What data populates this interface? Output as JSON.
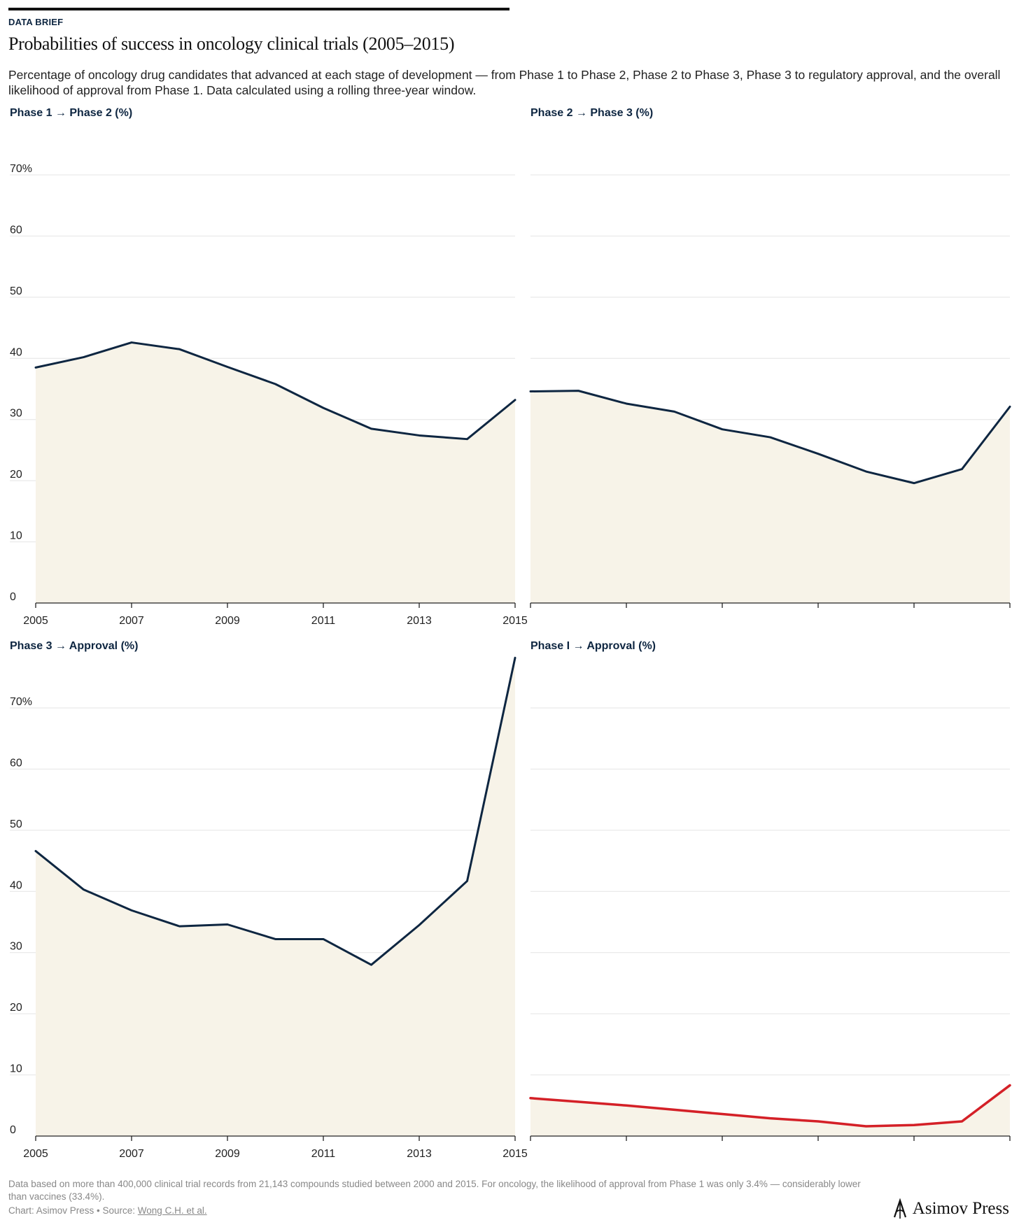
{
  "header": {
    "kicker": "DATA BRIEF",
    "title": "Probabilities of success in oncology clinical trials (2005–2015)",
    "subtitle": "Percentage of oncology drug candidates that advanced at each stage of development — from Phase 1 to Phase 2, Phase 2 to Phase 3, Phase 3 to regulatory approval, and the overall likelihood of approval from Phase 1. Data calculated using a rolling three-year window."
  },
  "colors": {
    "line": "#0e2641",
    "highlight": "#d42027",
    "fill": "#f7f3e8",
    "grid": "#e4e4e4"
  },
  "chart_data": [
    {
      "type": "area",
      "title": "Phase 1 → Phase 2 (%)",
      "x": [
        2005,
        2006,
        2007,
        2008,
        2009,
        2010,
        2011,
        2012,
        2013,
        2014,
        2015
      ],
      "values": [
        38.5,
        40.2,
        42.6,
        41.5,
        38.6,
        35.8,
        31.9,
        28.5,
        27.4,
        26.8,
        33.2
      ],
      "yticks": [
        "0",
        "10",
        "20",
        "30",
        "40",
        "50",
        "60",
        "70%"
      ],
      "xticks": [
        "2005",
        "2007",
        "2009",
        "2011",
        "2013",
        "2015"
      ],
      "ylim": [
        0,
        70
      ],
      "highlight": false
    },
    {
      "type": "area",
      "title": "Phase 2 → Phase 3 (%)",
      "x": [
        2005,
        2006,
        2007,
        2008,
        2009,
        2010,
        2011,
        2012,
        2013,
        2014,
        2015
      ],
      "values": [
        34.6,
        34.7,
        32.6,
        31.3,
        28.4,
        27.1,
        24.4,
        21.5,
        19.6,
        21.9,
        32.1
      ],
      "yticks": [],
      "xticks": [],
      "ylim": [
        0,
        70
      ],
      "highlight": false
    },
    {
      "type": "area",
      "title": "Phase 3 → Approval (%)",
      "x": [
        2005,
        2006,
        2007,
        2008,
        2009,
        2010,
        2011,
        2012,
        2013,
        2014,
        2015
      ],
      "values": [
        46.6,
        40.3,
        36.9,
        34.3,
        34.6,
        32.2,
        32.2,
        28.0,
        34.5,
        41.7,
        78.2
      ],
      "yticks": [
        "0",
        "10",
        "20",
        "30",
        "40",
        "50",
        "60",
        "70%"
      ],
      "xticks": [
        "2005",
        "2007",
        "2009",
        "2011",
        "2013",
        "2015"
      ],
      "ylim": [
        0,
        70
      ],
      "highlight": false
    },
    {
      "type": "area",
      "title": "Phase I → Approval (%)",
      "x": [
        2005,
        2006,
        2007,
        2008,
        2009,
        2010,
        2011,
        2012,
        2013,
        2014,
        2015
      ],
      "values": [
        6.2,
        5.6,
        5.0,
        4.3,
        3.6,
        2.9,
        2.4,
        1.6,
        1.8,
        2.4,
        8.3
      ],
      "yticks": [],
      "xticks": [],
      "ylim": [
        0,
        70
      ],
      "highlight": true
    }
  ],
  "footer": {
    "note": "Data based on more than 400,000 clinical trial records from 21,143 compounds studied between 2000 and 2015. For oncology, the likelihood of approval from Phase 1 was only 3.4% — considerably lower than vaccines (33.4%).",
    "credit_prefix": "Chart: Asimov Press • Source: ",
    "source_link": "Wong C.H. et al.",
    "logo": "Asimov Press"
  }
}
